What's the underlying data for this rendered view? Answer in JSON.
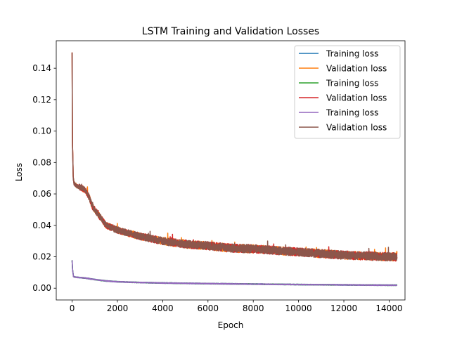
{
  "chart_data": {
    "type": "line",
    "title": "LSTM Training and Validation Losses",
    "xlabel": "Epoch",
    "ylabel": "Loss",
    "xlim": [
      -700,
      14700
    ],
    "ylim": [
      -0.0075,
      0.1575
    ],
    "xticks": [
      0,
      2000,
      4000,
      6000,
      8000,
      10000,
      12000,
      14000
    ],
    "xtick_labels": [
      "0",
      "2000",
      "4000",
      "6000",
      "8000",
      "10000",
      "12000",
      "14000"
    ],
    "yticks": [
      0.0,
      0.02,
      0.04,
      0.06,
      0.08,
      0.1,
      0.12,
      0.14
    ],
    "ytick_labels": [
      "0.00",
      "0.02",
      "0.04",
      "0.06",
      "0.08",
      "0.10",
      "0.12",
      "0.14"
    ],
    "grid": false,
    "legend_position": "top-right",
    "series": [
      {
        "name": "Training loss",
        "color": "#1f77b4",
        "x": [
          0,
          20,
          60,
          100,
          150,
          300,
          600,
          1000,
          1500,
          2000,
          3000,
          4000,
          6000,
          8000,
          10000,
          12000,
          14000,
          14350
        ],
        "y": [
          0.0175,
          0.012,
          0.0075,
          0.0072,
          0.007,
          0.0068,
          0.0064,
          0.0055,
          0.0046,
          0.0041,
          0.0036,
          0.0033,
          0.0029,
          0.0026,
          0.0023,
          0.0021,
          0.0019,
          0.0019
        ]
      },
      {
        "name": "Validation loss",
        "color": "#ff7f0e",
        "x": [
          0,
          15,
          30,
          50,
          80,
          120,
          200,
          400,
          600,
          750,
          900,
          1200,
          1500,
          2000,
          3000,
          4000,
          5000,
          6000,
          7000,
          8000,
          9000,
          10000,
          11000,
          12000,
          13000,
          14000,
          14350
        ],
        "y": [
          0.15,
          0.092,
          0.085,
          0.07,
          0.067,
          0.066,
          0.065,
          0.064,
          0.062,
          0.058,
          0.052,
          0.046,
          0.04,
          0.037,
          0.033,
          0.03,
          0.028,
          0.027,
          0.0255,
          0.025,
          0.024,
          0.023,
          0.022,
          0.021,
          0.0205,
          0.02,
          0.0198
        ]
      },
      {
        "name": "Training loss",
        "color": "#2ca02c",
        "x": [
          0,
          20,
          60,
          100,
          150,
          300,
          600,
          1000,
          1500,
          2000,
          3000,
          4000,
          6000,
          8000,
          10000,
          12000,
          14000,
          14350
        ],
        "y": [
          0.0175,
          0.012,
          0.0075,
          0.0072,
          0.007,
          0.0068,
          0.0064,
          0.0055,
          0.0046,
          0.0041,
          0.0036,
          0.0033,
          0.0029,
          0.0026,
          0.0023,
          0.0021,
          0.0019,
          0.0019
        ]
      },
      {
        "name": "Validation loss",
        "color": "#d62728",
        "x": [
          0,
          15,
          30,
          50,
          80,
          120,
          200,
          400,
          600,
          750,
          900,
          1200,
          1500,
          2000,
          3000,
          4000,
          5000,
          6000,
          7000,
          8000,
          9000,
          10000,
          11000,
          12000,
          13000,
          14000,
          14350
        ],
        "y": [
          0.15,
          0.092,
          0.085,
          0.07,
          0.067,
          0.066,
          0.065,
          0.064,
          0.062,
          0.058,
          0.052,
          0.046,
          0.04,
          0.037,
          0.033,
          0.03,
          0.028,
          0.027,
          0.0255,
          0.025,
          0.024,
          0.023,
          0.022,
          0.021,
          0.0205,
          0.02,
          0.0198
        ]
      },
      {
        "name": "Training loss",
        "color": "#9467bd",
        "x": [
          0,
          20,
          60,
          100,
          150,
          300,
          600,
          1000,
          1500,
          2000,
          3000,
          4000,
          6000,
          8000,
          10000,
          12000,
          14000,
          14350
        ],
        "y": [
          0.0175,
          0.012,
          0.0075,
          0.0072,
          0.007,
          0.0068,
          0.0064,
          0.0055,
          0.0046,
          0.0041,
          0.0036,
          0.0033,
          0.0029,
          0.0026,
          0.0023,
          0.0021,
          0.0019,
          0.0019
        ]
      },
      {
        "name": "Validation loss",
        "color": "#8c564b",
        "x": [
          0,
          15,
          30,
          50,
          80,
          120,
          200,
          400,
          600,
          750,
          900,
          1200,
          1500,
          2000,
          3000,
          4000,
          5000,
          6000,
          7000,
          8000,
          9000,
          10000,
          11000,
          12000,
          13000,
          14000,
          14350
        ],
        "y": [
          0.15,
          0.092,
          0.085,
          0.07,
          0.067,
          0.066,
          0.065,
          0.064,
          0.062,
          0.058,
          0.052,
          0.046,
          0.04,
          0.037,
          0.033,
          0.03,
          0.028,
          0.027,
          0.0255,
          0.025,
          0.024,
          0.023,
          0.022,
          0.021,
          0.0205,
          0.02,
          0.0198
        ]
      }
    ]
  }
}
